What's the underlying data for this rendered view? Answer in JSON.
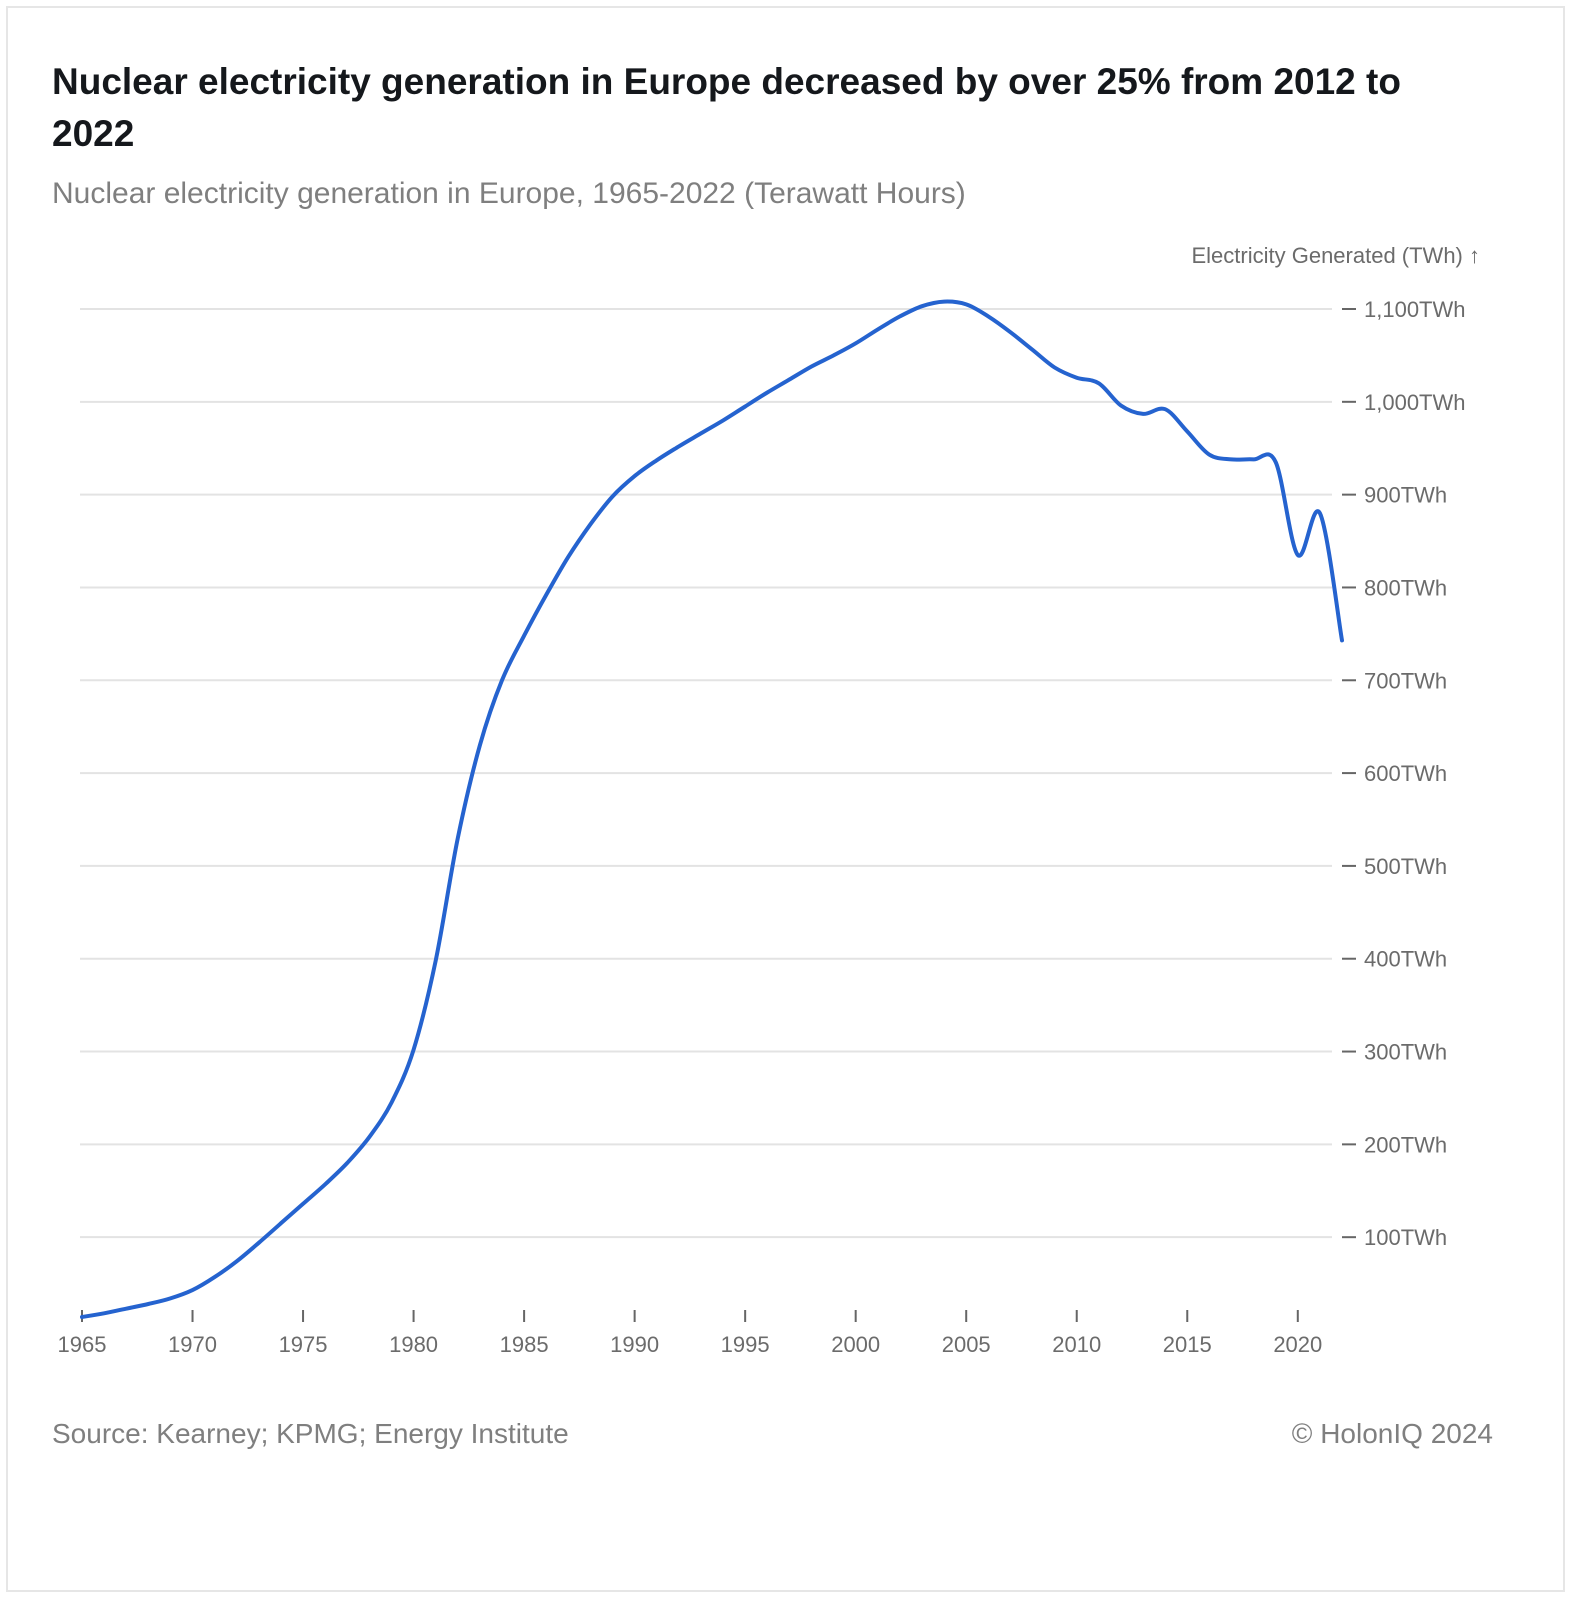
{
  "header": {
    "title": "Nuclear electricity generation in Europe decreased by over 25% from 2012 to 2022",
    "subtitle": "Nuclear electricity generation in Europe, 1965-2022 (Terawatt Hours)"
  },
  "footer": {
    "source": "Source: Kearney; KPMG; Energy Institute",
    "copyright": "© HolonIQ 2024"
  },
  "chart_data": {
    "type": "line",
    "title": "Nuclear electricity generation in Europe decreased by over 25% from 2012 to 2022",
    "subtitle": "Nuclear electricity generation in Europe, 1965-2022 (Terawatt Hours)",
    "xlabel": "",
    "ylabel": "Electricity Generated (TWh) ↑",
    "xlim": [
      1965,
      2022
    ],
    "ylim": [
      0,
      1100
    ],
    "x_ticks": [
      1965,
      1970,
      1975,
      1980,
      1985,
      1990,
      1995,
      2000,
      2005,
      2010,
      2015,
      2020
    ],
    "y_ticks": [
      100,
      200,
      300,
      400,
      500,
      600,
      700,
      800,
      900,
      1000,
      1100
    ],
    "y_tick_labels": [
      "100TWh",
      "200TWh",
      "300TWh",
      "400TWh",
      "500TWh",
      "600TWh",
      "700TWh",
      "800TWh",
      "900TWh",
      "1,000TWh",
      "1,100TWh"
    ],
    "y_axis_position": "right",
    "grid": true,
    "legend": "none",
    "color": "#2563cf",
    "x": [
      1965,
      1966,
      1967,
      1968,
      1969,
      1970,
      1971,
      1972,
      1973,
      1974,
      1975,
      1976,
      1977,
      1978,
      1979,
      1980,
      1981,
      1982,
      1983,
      1984,
      1985,
      1986,
      1987,
      1988,
      1989,
      1990,
      1991,
      1992,
      1993,
      1994,
      1995,
      1996,
      1997,
      1998,
      1999,
      2000,
      2001,
      2002,
      2003,
      2004,
      2005,
      2006,
      2007,
      2008,
      2009,
      2010,
      2011,
      2012,
      2013,
      2014,
      2015,
      2016,
      2017,
      2018,
      2019,
      2020,
      2021,
      2022
    ],
    "values": [
      14,
      18,
      23,
      28,
      34,
      43,
      57,
      74,
      94,
      115,
      136,
      157,
      180,
      208,
      245,
      302,
      398,
      530,
      630,
      700,
      748,
      792,
      833,
      868,
      898,
      920,
      937,
      952,
      966,
      980,
      995,
      1010,
      1024,
      1038,
      1050,
      1063,
      1078,
      1092,
      1103,
      1108,
      1105,
      1092,
      1075,
      1056,
      1037,
      1026,
      1020,
      996,
      987,
      992,
      968,
      943,
      938,
      938,
      935,
      835,
      880,
      743
    ]
  }
}
